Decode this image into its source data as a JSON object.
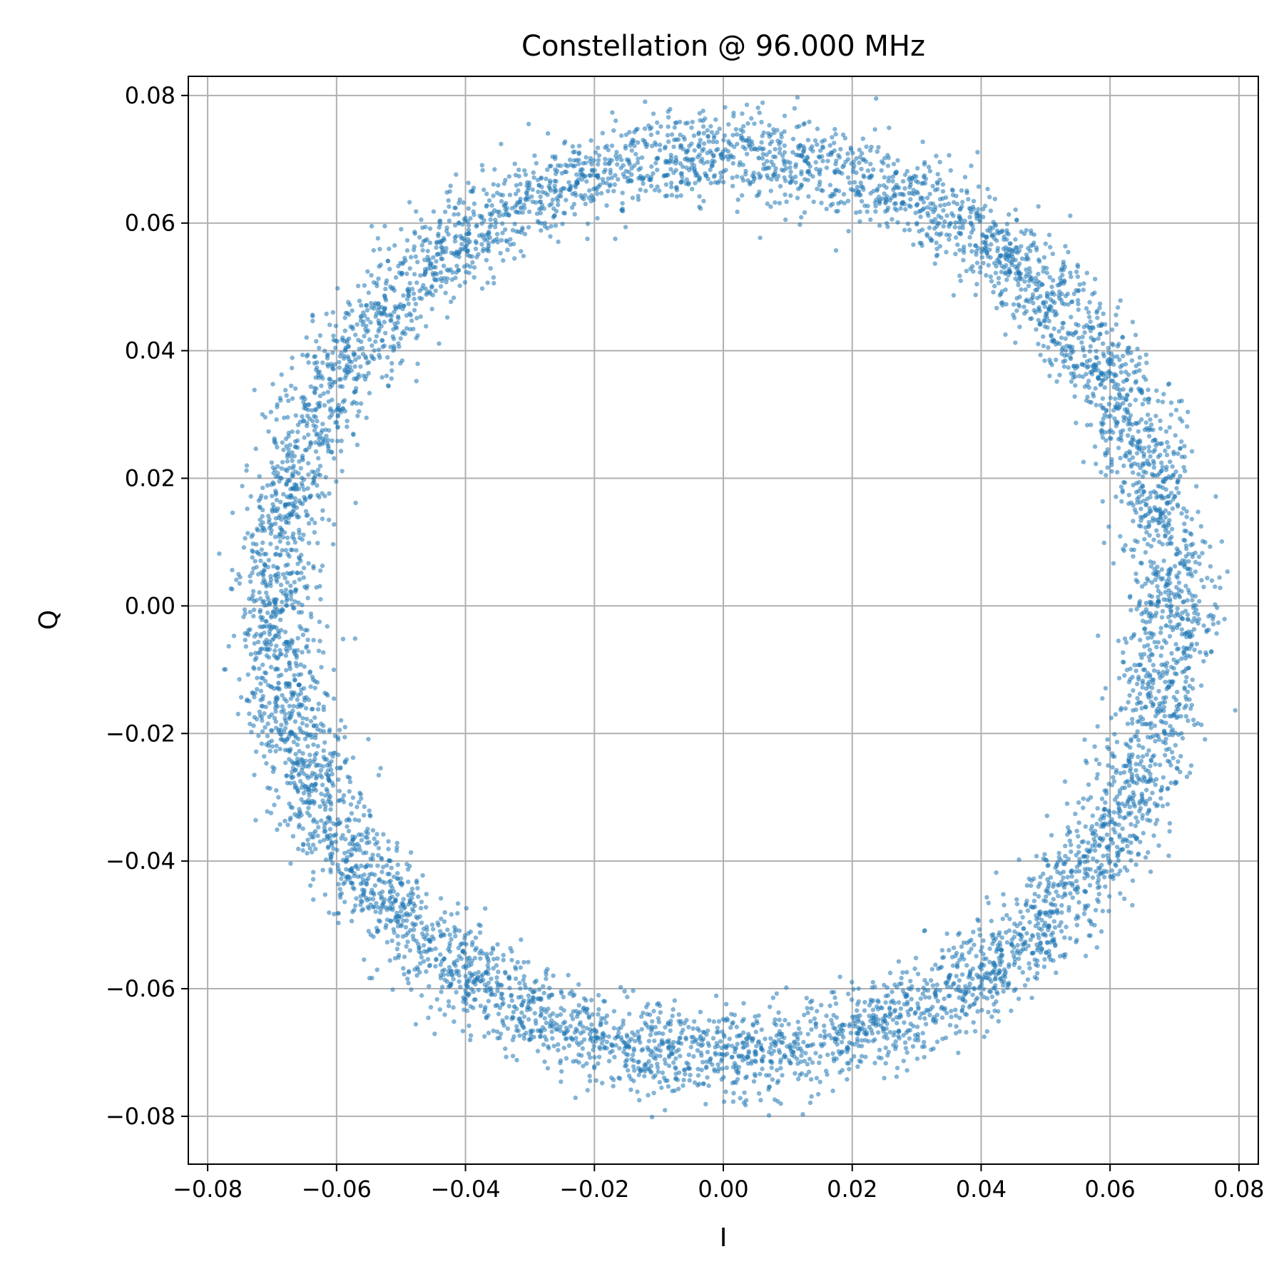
{
  "chart_data": {
    "type": "scatter",
    "title": "Constellation @ 96.000 MHz",
    "xlabel": "I",
    "ylabel": "Q",
    "xlim": [
      -0.083,
      0.083
    ],
    "ylim": [
      -0.0875,
      0.083
    ],
    "xticks": [
      -0.08,
      -0.06,
      -0.04,
      -0.02,
      0.0,
      0.02,
      0.04,
      0.06,
      0.08
    ],
    "xtick_labels": [
      "−0.08",
      "−0.06",
      "−0.04",
      "−0.02",
      "0.00",
      "0.02",
      "0.04",
      "0.06",
      "0.08"
    ],
    "yticks": [
      -0.08,
      -0.06,
      -0.04,
      -0.02,
      0.0,
      0.02,
      0.04,
      0.06,
      0.08
    ],
    "ytick_labels": [
      "−0.08",
      "−0.06",
      "−0.04",
      "−0.02",
      "0.00",
      "0.02",
      "0.04",
      "0.06",
      "0.08"
    ],
    "grid": true,
    "series": [
      {
        "color": "#1f77b4",
        "distribution": "ring",
        "center": [
          0.0,
          0.0
        ],
        "radius_I": 0.0695,
        "radius_Q": 0.0705,
        "spread": 0.0035,
        "points": [
          [
            0.0695,
            0.0
          ],
          [
            0.0683,
            0.0125
          ],
          [
            0.0645,
            0.0246
          ],
          [
            0.0586,
            0.0363
          ],
          [
            0.0505,
            0.0466
          ],
          [
            0.0409,
            0.0553
          ],
          [
            0.03,
            0.0628
          ],
          [
            0.018,
            0.068
          ],
          [
            0.0055,
            0.0702
          ],
          [
            -0.0073,
            0.0698
          ],
          [
            -0.0196,
            0.0674
          ],
          [
            -0.0314,
            0.0624
          ],
          [
            -0.0418,
            0.0552
          ],
          [
            -0.0508,
            0.0466
          ],
          [
            -0.0583,
            0.0366
          ],
          [
            -0.064,
            0.0254
          ],
          [
            -0.0678,
            0.0131
          ],
          [
            -0.0695,
            0.0005
          ],
          [
            -0.069,
            -0.0121
          ],
          [
            -0.0659,
            -0.0245
          ],
          [
            -0.0604,
            -0.036
          ],
          [
            -0.0527,
            -0.0465
          ],
          [
            -0.0433,
            -0.0553
          ],
          [
            -0.0324,
            -0.0628
          ],
          [
            -0.0205,
            -0.0677
          ],
          [
            -0.0079,
            -0.0702
          ],
          [
            0.0049,
            -0.0699
          ],
          [
            0.0174,
            -0.0679
          ],
          [
            0.0291,
            -0.0632
          ],
          [
            0.0398,
            -0.0566
          ],
          [
            0.0491,
            -0.0483
          ],
          [
            0.0568,
            -0.0385
          ],
          [
            0.0627,
            -0.0275
          ],
          [
            0.0667,
            -0.0154
          ],
          [
            0.0687,
            -0.0031
          ]
        ]
      }
    ]
  }
}
